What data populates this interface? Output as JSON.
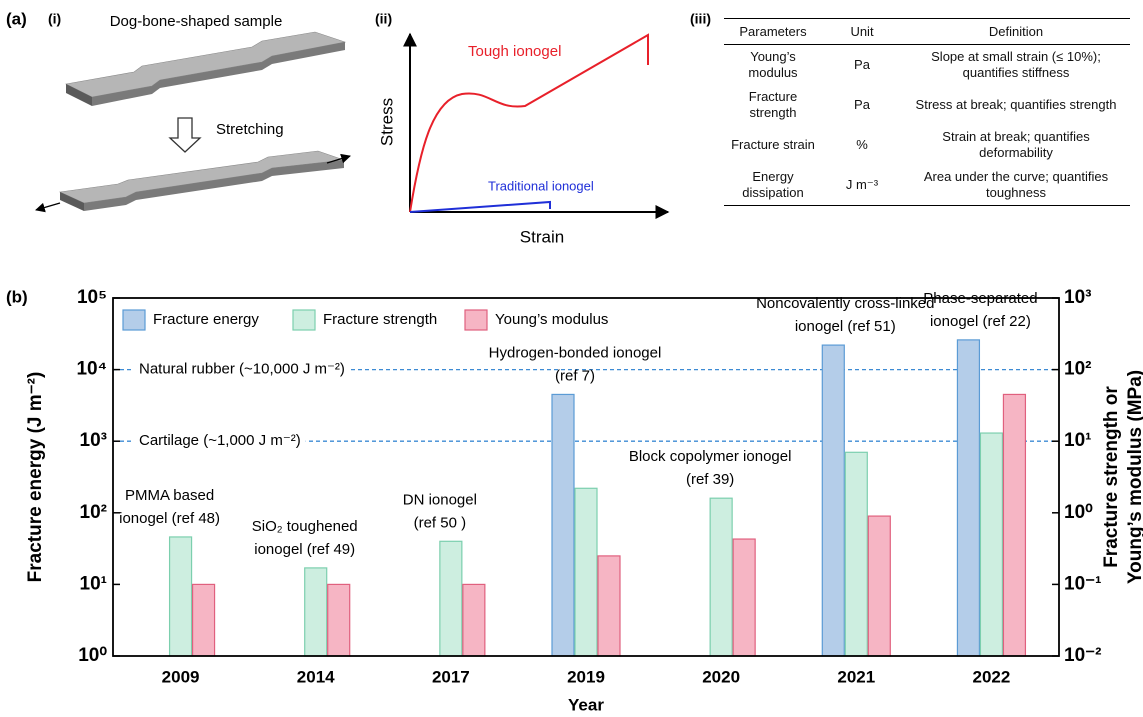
{
  "panel_a": {
    "label": "(a)",
    "i": {
      "label": "(i)",
      "title": "Dog-bone-shaped sample",
      "arrow_label": "Stretching"
    },
    "ii": {
      "label": "(ii)",
      "x_label": "Strain",
      "y_label": "Stress",
      "curves": [
        "Tough ionogel",
        "Traditional ionogel"
      ]
    },
    "iii": {
      "label": "(iii)",
      "table": {
        "header": [
          "Parameters",
          "Unit",
          "Definition"
        ],
        "rows": [
          [
            "Young’s modulus",
            "Pa",
            "Slope at small strain (≤ 10%); quantifies stiffness"
          ],
          [
            "Fracture strength",
            "Pa",
            "Stress at break; quantifies strength"
          ],
          [
            "Fracture strain",
            "%",
            "Strain at break; quantifies deformability"
          ],
          [
            "Energy dissipation",
            "J m⁻³",
            "Area under the curve; quantifies toughness"
          ]
        ]
      }
    }
  },
  "chart_data": {
    "type": "bar",
    "label": "(b)",
    "x_label": "Year",
    "y_label": "Fracture energy (J m⁻²)",
    "y2_label": [
      "Fracture strength or",
      "Young’s modulus (MPa)"
    ],
    "yscale": "log",
    "y2scale": "log",
    "categories": [
      "2009",
      "2014",
      "2017",
      "2019",
      "2020",
      "2021",
      "2022"
    ],
    "series": [
      {
        "name": "Fracture energy",
        "color": "#b4cde9",
        "edge": "#5b9bd5",
        "values": [
          null,
          null,
          null,
          4500,
          null,
          22000,
          26000
        ]
      },
      {
        "name": "Fracture strength",
        "color": "#cdeee0",
        "edge": "#7ccfae",
        "axis": "y2",
        "values": [
          0.46,
          0.17,
          0.4,
          2.2,
          1.6,
          7,
          13
        ]
      },
      {
        "name": "Young’s modulus",
        "color": "#f6b5c4",
        "edge": "#e0607e",
        "axis": "y2",
        "values": [
          0.1,
          0.1,
          0.1,
          0.25,
          0.43,
          0.9,
          45
        ]
      }
    ],
    "ylim": [
      1,
      100000
    ],
    "yticks": [
      {
        "value": 1,
        "label": "10⁰"
      },
      {
        "value": 10,
        "label": "10¹"
      },
      {
        "value": 100,
        "label": "10²"
      },
      {
        "value": 1000,
        "label": "10³"
      },
      {
        "value": 10000,
        "label": "10⁴"
      },
      {
        "value": 100000,
        "label": "10⁵"
      }
    ],
    "y2lim": [
      0.01,
      1000
    ],
    "y2ticks": [
      {
        "value": 0.01,
        "label": "10⁻²"
      },
      {
        "value": 0.1,
        "label": "10⁻¹"
      },
      {
        "value": 1,
        "label": "10⁰"
      },
      {
        "value": 10,
        "label": "10¹"
      },
      {
        "value": 100,
        "label": "10²"
      },
      {
        "value": 1000,
        "label": "10³"
      }
    ],
    "reference_lines": [
      {
        "value": 10000,
        "label": "Natural rubber (~10,000 J m⁻²)"
      },
      {
        "value": 1000,
        "label": "Cartilage (~1,000 J m⁻²)"
      }
    ],
    "annotations": [
      [
        "PMMA based",
        "ionogel (ref 48)"
      ],
      [
        "SiO₂ toughened",
        "ionogel (ref 49)"
      ],
      [
        "DN ionogel",
        "(ref 50 )"
      ],
      [
        "Hydrogen-bonded ionogel",
        "(ref 7)"
      ],
      [
        "Block copolymer ionogel",
        "(ref 39)"
      ],
      [
        "Noncovalently cross-linked",
        "ionogel (ref 51)"
      ],
      [
        "Phase-separated",
        "ionogel (ref 22)"
      ]
    ],
    "legend": "upper left"
  }
}
